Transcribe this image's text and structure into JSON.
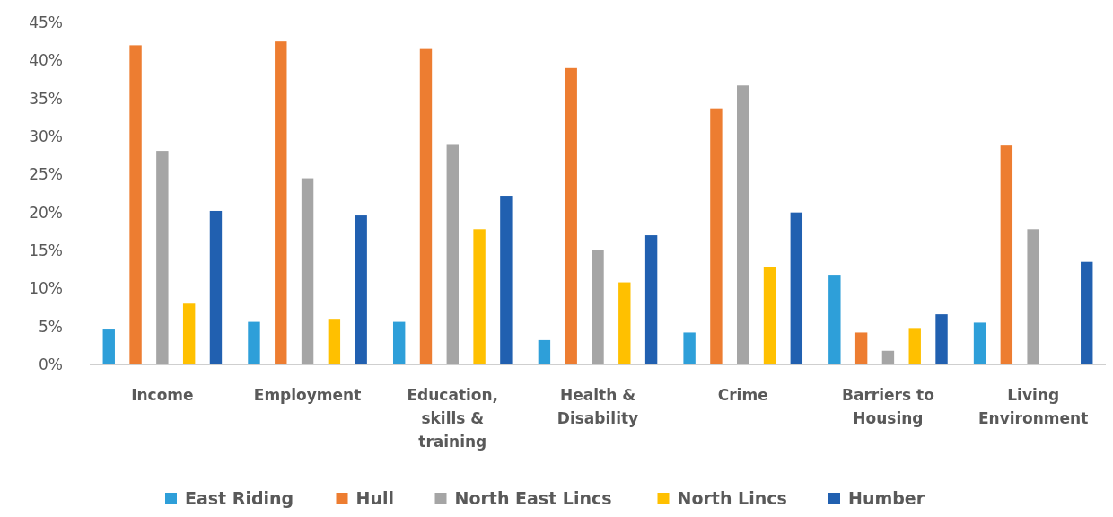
{
  "chart_data": {
    "type": "bar",
    "categories": [
      "Income",
      "Employment",
      "Education, skills & training",
      "Health & Disability",
      "Crime",
      "Barriers to Housing",
      "Living Environment"
    ],
    "series": [
      {
        "name": "East Riding",
        "color": "#2e9fd9",
        "values": [
          4.6,
          5.6,
          5.6,
          3.2,
          4.2,
          11.8,
          5.5
        ]
      },
      {
        "name": "Hull",
        "color": "#ed7d31",
        "values": [
          42,
          42.5,
          41.5,
          39,
          33.7,
          4.2,
          28.8
        ]
      },
      {
        "name": "North East Lincs",
        "color": "#a5a5a5",
        "values": [
          28.1,
          24.5,
          29,
          15,
          36.7,
          1.8,
          17.8
        ]
      },
      {
        "name": "North Lincs",
        "color": "#ffc000",
        "values": [
          8,
          6,
          17.8,
          10.8,
          12.8,
          4.8,
          null
        ]
      },
      {
        "name": "Humber",
        "color": "#2160b0",
        "values": [
          20.2,
          19.6,
          22.2,
          17,
          20,
          6.6,
          13.5
        ]
      }
    ],
    "ylim": [
      0,
      45
    ],
    "yticks": [
      {
        "value": 0,
        "label": "0%"
      },
      {
        "value": 5,
        "label": "5%"
      },
      {
        "value": 10,
        "label": "10%"
      },
      {
        "value": 15,
        "label": "15%"
      },
      {
        "value": 20,
        "label": "20%"
      },
      {
        "value": 25,
        "label": "25%"
      },
      {
        "value": 30,
        "label": "30%"
      },
      {
        "value": 35,
        "label": "35%"
      },
      {
        "value": 40,
        "label": "40%"
      },
      {
        "value": 45,
        "label": "45%"
      }
    ],
    "grid": false,
    "legend": "bottom"
  }
}
